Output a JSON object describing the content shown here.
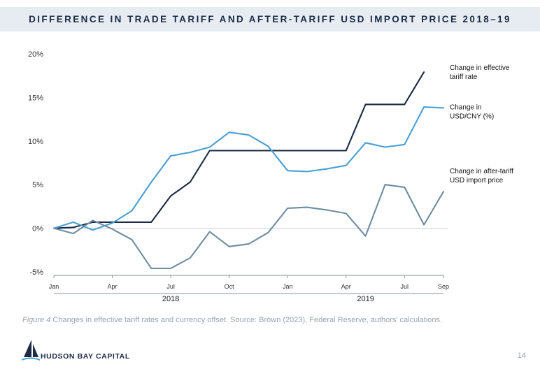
{
  "header": {
    "title": "DIFFERENCE IN TRADE TARIFF AND AFTER-TARIFF USD IMPORT PRICE 2018–19"
  },
  "chart_data": {
    "type": "line",
    "title": "DIFFERENCE IN TRADE TARIFF AND AFTER-TARIFF USD IMPORT PRICE 2018–19",
    "xlabel": "",
    "ylabel": "",
    "ylim": [
      -5,
      20
    ],
    "yticks": [
      -5,
      0,
      5,
      10,
      15,
      20
    ],
    "ytick_labels": [
      "-5%",
      "0%",
      "5%",
      "10%",
      "15%",
      "20%"
    ],
    "x": [
      0,
      1,
      2,
      3,
      4,
      5,
      6,
      7,
      8,
      9,
      10,
      11,
      12,
      13,
      14,
      15,
      16,
      17,
      18,
      19,
      20
    ],
    "xticks": [
      0,
      3,
      6,
      9,
      12,
      15,
      18,
      20
    ],
    "xtick_labels": [
      "Jan",
      "Apr",
      "Jul",
      "Oct",
      "Jan",
      "Apr",
      "Jul",
      "Sep"
    ],
    "year_labels": [
      {
        "label": "2018",
        "at": 6
      },
      {
        "label": "2019",
        "at": 16
      }
    ],
    "grid": false,
    "zero_line": true,
    "series": [
      {
        "name": "Change in effective tariff rate",
        "legend_lines": [
          "Change in effective",
          "tariff rate"
        ],
        "color": "#1b2b45",
        "values": [
          0,
          0.1,
          0.7,
          0.7,
          0.7,
          0.7,
          3.7,
          5.3,
          8.9,
          8.9,
          8.9,
          8.9,
          8.9,
          8.9,
          8.9,
          8.9,
          14.2,
          14.2,
          14.2,
          17.9,
          null
        ]
      },
      {
        "name": "Change in USD/CNY (%)",
        "legend_lines": [
          "Change in",
          "USD/CNY (%)"
        ],
        "color": "#4a9fd3",
        "values": [
          0,
          0.7,
          -0.2,
          0.6,
          2.0,
          5.3,
          8.3,
          8.7,
          9.3,
          11.0,
          10.7,
          9.4,
          6.6,
          6.5,
          6.8,
          7.2,
          9.8,
          9.3,
          9.6,
          13.9,
          13.8
        ]
      },
      {
        "name": "Change in after-tariff USD import price",
        "legend_lines": [
          "Change in after-tariff",
          "USD import price"
        ],
        "color": "#6f8da0",
        "values": [
          0,
          -0.6,
          0.9,
          -0.1,
          -1.3,
          -4.6,
          -4.6,
          -3.4,
          -0.4,
          -2.1,
          -1.8,
          -0.5,
          2.3,
          2.4,
          2.1,
          1.7,
          -0.9,
          5.0,
          4.7,
          0.4,
          4.2
        ]
      }
    ]
  },
  "caption": {
    "figure": "Figure 4",
    "text": " Changes in effective tariff rates and currency offset. Source: Brown (2023), Federal Reserve, authors' calculations."
  },
  "footer": {
    "brand": "HUDSON BAY CAPITAL",
    "page": "14",
    "logo_color": "#1b2b45",
    "logo_accent": "#4a9fd3"
  }
}
